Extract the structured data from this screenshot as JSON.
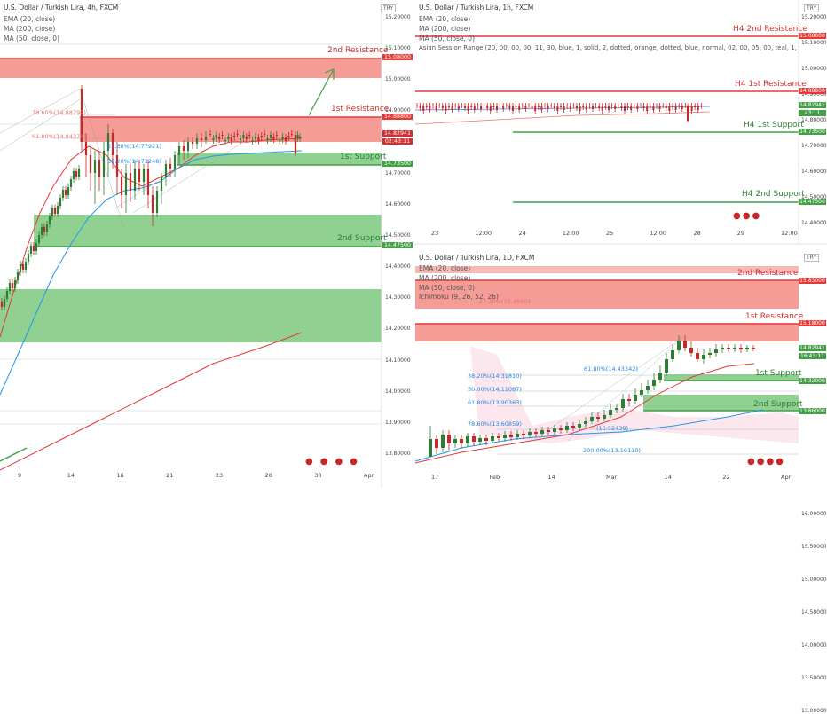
{
  "colors": {
    "resistance": "#e53935",
    "resistance_fill": "#f28b82",
    "support": "#43a047",
    "support_fill": "#7cc97f",
    "ema": "#e53935",
    "ma200": "#e53935",
    "ma50": "#2196f3",
    "candle_up": "#2e7d32",
    "candle_down": "#c62828",
    "axis_text": "#444444",
    "price_label": "#d32f2f"
  },
  "chart_data": [
    {
      "type": "candlestick",
      "title": "U.S. Dollar / Turkish Lira, 4h, FXCM",
      "legend": [
        "EMA (20, close)",
        "MA (200, close)",
        "MA (50, close, 0)"
      ],
      "currency": "TRY",
      "y_ticks": [
        "15.20000",
        "15.10000",
        "15.00000",
        "14.90000",
        "14.80000",
        "14.70000",
        "14.60000",
        "14.50000",
        "14.40000",
        "14.30000",
        "14.20000",
        "14.10000",
        "14.00000",
        "13.90000",
        "13.80000"
      ],
      "x_ticks": [
        "9",
        "14",
        "16",
        "21",
        "23",
        "28",
        "30",
        "Apr"
      ],
      "levels": [
        {
          "label": "2nd Resistance",
          "price_label": "15.08000",
          "kind": "resistance"
        },
        {
          "label": "1st Resistance",
          "price_label": "14.88800",
          "kind": "resistance"
        },
        {
          "label": "1st Support",
          "price_label": "14.73500",
          "kind": "support"
        },
        {
          "label": "2nd Support",
          "price_label": "14.47500",
          "kind": "support"
        }
      ],
      "current_price": "14.82941",
      "countdown": "02:43:11",
      "fib_labels": [
        "78.60%(14.88799)",
        "61.80%(14.84374)",
        "23.60%(14.77921)",
        "38.20%(14.73248)"
      ]
    },
    {
      "type": "candlestick",
      "title": "U.S. Dollar / Turkish Lira, 1h, FXCM",
      "legend": [
        "EMA (20, close)",
        "MA (200, close)",
        "MA (50, close, 0)",
        "Asian Session Range (20, 00, 00, 00, 11, 30, blue, 1, solid, 2, dotted, orange, dotted, blue, normal, 02, 00, 05, 00, teal, 1, solid, 2, dotted, teal, dotted"
      ],
      "currency": "TRY",
      "y_ticks": [
        "15.20000",
        "15.10000",
        "15.00000",
        "14.90000",
        "14.80000",
        "14.70000",
        "14.60000",
        "14.50000",
        "14.40000"
      ],
      "x_ticks": [
        "23",
        "12:00",
        "24",
        "12:00",
        "25",
        "12:00",
        "28",
        "29",
        "12:00"
      ],
      "levels": [
        {
          "label": "H4 2nd Resistance",
          "price_label": "15.08000",
          "kind": "resistance"
        },
        {
          "label": "H4 1st Resistance",
          "price_label": "14.88800",
          "kind": "resistance"
        },
        {
          "label": "H4 1st Support",
          "price_label": "14.73500",
          "kind": "support"
        },
        {
          "label": "H4 2nd Support",
          "price_label": "14.47500",
          "kind": "support"
        }
      ],
      "current_price": "14.82941",
      "countdown": "43:11"
    },
    {
      "type": "candlestick",
      "title": "U.S. Dollar / Turkish Lira, 1D, FXCM",
      "legend": [
        "EMA (20, close)",
        "MA (200, close)",
        "MA (50, close, 0)",
        "Ichimoku (9, 26, 52, 26)"
      ],
      "currency": "TRY",
      "y_ticks": [
        "16.00000",
        "15.50000",
        "15.00000",
        "14.50000",
        "14.00000",
        "13.50000",
        "13.00000"
      ],
      "x_ticks": [
        "17",
        "Feb",
        "14",
        "Mar",
        "14",
        "22",
        "Apr"
      ],
      "levels": [
        {
          "label": "2nd Resistance",
          "price_label": "15.83000",
          "kind": "resistance"
        },
        {
          "label": "1st Resistance",
          "price_label": "15.18000",
          "kind": "resistance"
        },
        {
          "label": "1st Support",
          "price_label": "14.32000",
          "kind": "support"
        },
        {
          "label": "2nd Support",
          "price_label": "13.86000",
          "kind": "support"
        }
      ],
      "current_price": "14.82941",
      "countdown": "16:43:11",
      "fib_labels": [
        "27.20%(15.46664)",
        "61.80%(14.43342)",
        "38.20%(14.31810)",
        "50.00%(14.11087)",
        "61.80%(13.90363)",
        "78.60%(13.60859)",
        "(13.52439)",
        "200.00%(13.19110)"
      ]
    }
  ]
}
